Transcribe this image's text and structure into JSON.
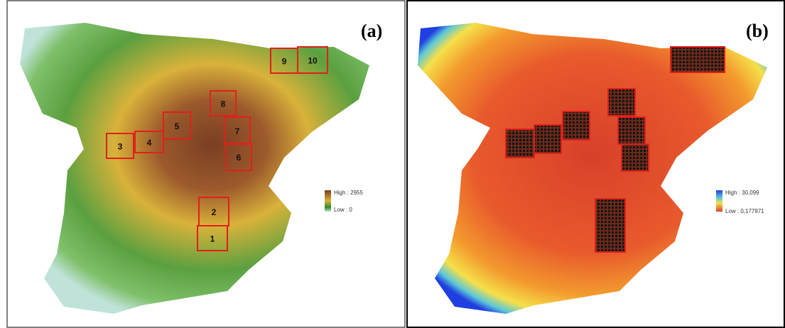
{
  "panels": [
    {
      "label": "(a)",
      "legend": {
        "high": "High : 2955",
        "low": "Low : 0"
      },
      "boxes": [
        "1",
        "2",
        "3",
        "4",
        "5",
        "6",
        "7",
        "8",
        "9",
        "10"
      ]
    },
    {
      "label": "(b)",
      "legend": {
        "high": "High : 30,099",
        "low": "Low : 0,177971"
      }
    }
  ]
}
